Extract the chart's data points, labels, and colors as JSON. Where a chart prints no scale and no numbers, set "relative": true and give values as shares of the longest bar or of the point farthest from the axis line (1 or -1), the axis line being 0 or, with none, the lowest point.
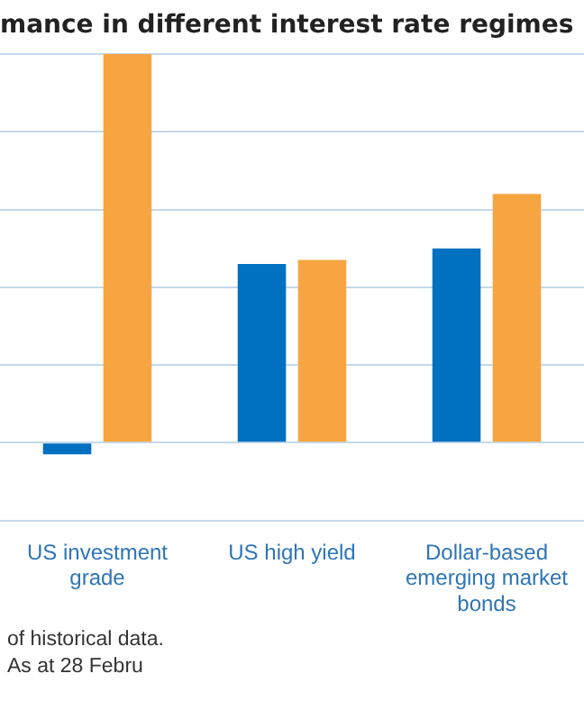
{
  "chart_data": {
    "type": "bar",
    "title": "mance in different interest rate regimes",
    "categories": [
      "US investment grade",
      "US high yield",
      "Dollar-based emerging market bonds"
    ],
    "series": [
      {
        "color": "#0070c0",
        "values": [
          -0.03,
          0.46,
          0.5
        ]
      },
      {
        "color": "#f7a541",
        "values": [
          1,
          0.47,
          0.64
        ]
      }
    ],
    "relative": true,
    "grid": "y",
    "legend": false,
    "annotations": [
      "of historical data.",
      "As at 28 Febru"
    ]
  }
}
